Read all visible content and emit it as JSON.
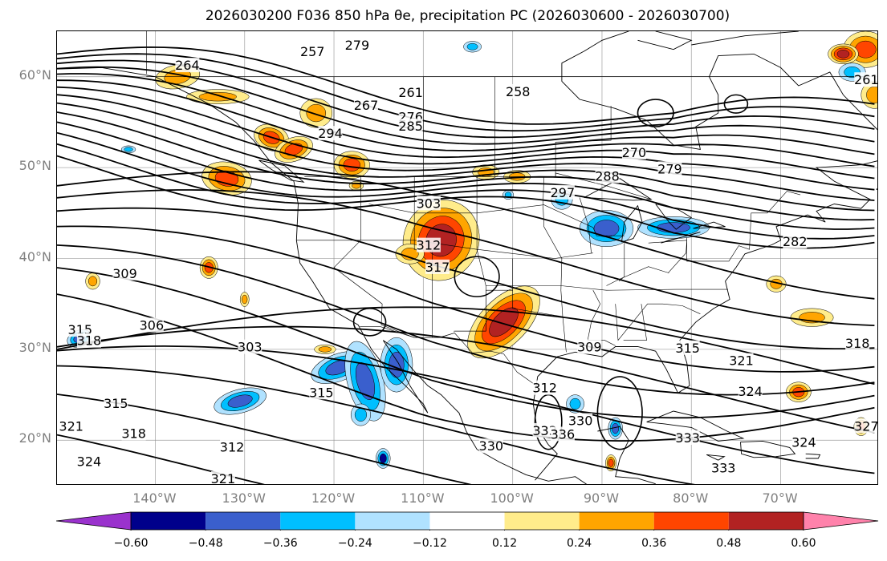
{
  "title": "2026030200 F036 850 hPa θe, precipitation PC (2026030600 - 2026030700)",
  "map": {
    "lat_labels": [
      "60°N",
      "50°N",
      "40°N",
      "30°N",
      "20°N"
    ],
    "lat_values": [
      60,
      50,
      40,
      30,
      20
    ],
    "lon_labels": [
      "140°W",
      "130°W",
      "120°W",
      "110°W",
      "100°W",
      "90°W",
      "80°W",
      "70°W"
    ],
    "lon_values": [
      -140,
      -130,
      -120,
      -110,
      -100,
      -90,
      -80,
      -70
    ],
    "extent": {
      "lon_min": -151,
      "lon_max": -59,
      "lat_min": 15,
      "lat_max": 65
    },
    "contour_labels": [
      {
        "text": "264",
        "lon": -136.5,
        "lat": 61.2
      },
      {
        "text": "257",
        "lon": -122.5,
        "lat": 62.7
      },
      {
        "text": "279",
        "lon": -117.5,
        "lat": 63.4
      },
      {
        "text": "261",
        "lon": -111.5,
        "lat": 58.2
      },
      {
        "text": "267",
        "lon": -116.5,
        "lat": 56.8
      },
      {
        "text": "276",
        "lon": -111.5,
        "lat": 55.5
      },
      {
        "text": "285",
        "lon": -111.5,
        "lat": 54.5
      },
      {
        "text": "294",
        "lon": -120.5,
        "lat": 53.7
      },
      {
        "text": "258",
        "lon": -99.5,
        "lat": 58.3
      },
      {
        "text": "261",
        "lon": -60.5,
        "lat": 59.6
      },
      {
        "text": "270",
        "lon": -86.5,
        "lat": 51.6
      },
      {
        "text": "279",
        "lon": -82.5,
        "lat": 49.8
      },
      {
        "text": "288",
        "lon": -89.5,
        "lat": 49.0
      },
      {
        "text": "297",
        "lon": -94.5,
        "lat": 47.2
      },
      {
        "text": "282",
        "lon": -68.5,
        "lat": 41.8
      },
      {
        "text": "303",
        "lon": -109.5,
        "lat": 46.0
      },
      {
        "text": "309",
        "lon": -143.5,
        "lat": 38.3
      },
      {
        "text": "306",
        "lon": -140.5,
        "lat": 32.6
      },
      {
        "text": "315",
        "lon": -148.5,
        "lat": 32.1
      },
      {
        "text": "318",
        "lon": -147.5,
        "lat": 30.9
      },
      {
        "text": "303",
        "lon": -129.5,
        "lat": 30.2
      },
      {
        "text": "315",
        "lon": -121.5,
        "lat": 25.2
      },
      {
        "text": "315",
        "lon": -144.5,
        "lat": 24.0
      },
      {
        "text": "321",
        "lon": -149.5,
        "lat": 21.5
      },
      {
        "text": "318",
        "lon": -142.5,
        "lat": 20.7
      },
      {
        "text": "324",
        "lon": -147.5,
        "lat": 17.6
      },
      {
        "text": "312",
        "lon": -131.5,
        "lat": 19.2
      },
      {
        "text": "321",
        "lon": -132.5,
        "lat": 15.7
      },
      {
        "text": "312",
        "lon": -109.5,
        "lat": 41.4
      },
      {
        "text": "317",
        "lon": -108.5,
        "lat": 39.0
      },
      {
        "text": "309",
        "lon": -91.5,
        "lat": 30.2
      },
      {
        "text": "315",
        "lon": -80.5,
        "lat": 30.1
      },
      {
        "text": "321",
        "lon": -74.5,
        "lat": 28.7
      },
      {
        "text": "318",
        "lon": -61.5,
        "lat": 30.6
      },
      {
        "text": "324",
        "lon": -73.5,
        "lat": 25.3
      },
      {
        "text": "312",
        "lon": -96.5,
        "lat": 25.7
      },
      {
        "text": "330",
        "lon": -92.5,
        "lat": 22.1
      },
      {
        "text": "330",
        "lon": -102.5,
        "lat": 19.3
      },
      {
        "text": "333",
        "lon": -96.5,
        "lat": 21.0
      },
      {
        "text": "336",
        "lon": -94.5,
        "lat": 20.6
      },
      {
        "text": "333",
        "lon": -80.5,
        "lat": 20.2
      },
      {
        "text": "333",
        "lon": -76.5,
        "lat": 16.9
      },
      {
        "text": "324",
        "lon": -67.5,
        "lat": 19.7
      },
      {
        "text": "327",
        "lon": -60.5,
        "lat": 21.5
      }
    ]
  },
  "colorbar": {
    "tick_labels": [
      "−0.60",
      "−0.48",
      "−0.36",
      "−0.24",
      "−0.12",
      "0.12",
      "0.24",
      "0.36",
      "0.48",
      "0.60"
    ],
    "colors": [
      "#9a32cd",
      "#00008b",
      "#3a5fcd",
      "#00bfff",
      "#b0e2ff",
      "#ffffff",
      "#ffec8b",
      "#ffa500",
      "#ff4500",
      "#b22222",
      "#ff82ab"
    ],
    "extend_min_color": "#9a32cd",
    "extend_max_color": "#ff82ab"
  },
  "colors": {
    "contour": "#000000",
    "coastline": "#000000",
    "grid": "#888888",
    "axis_label": "#808080"
  }
}
